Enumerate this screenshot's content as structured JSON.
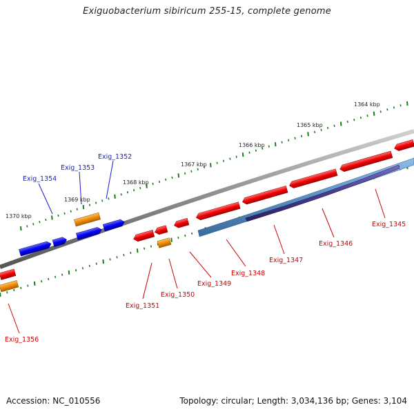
{
  "title": "Exiguobacterium sibiricum 255-15, complete genome",
  "accession": "Accession: NC_010556",
  "topology": "Topology: circular; Length: 3,034,136 bp; Genes: 3,104",
  "colors": {
    "backbone": "#8a8a8a",
    "tick": "#1b7a1b",
    "cds_forward": "#0000ee",
    "cds_reverse": "#ee0000",
    "rna_forward": "#ee8a00",
    "rna_reverse": "#ee8a00",
    "feature_blue": "#5a8fc4",
    "feature_purple": "#4a3c8c",
    "label_forward": "#1a1acc",
    "label_reverse": "#cc0000",
    "kbp_label": "#222222"
  },
  "scale_labels": [
    "1364 kbp",
    "1365 kbp",
    "1366 kbp",
    "1367 kbp",
    "1368 kbp",
    "1369 kbp",
    "1370 kbp"
  ],
  "forward_labels": [
    "Exig_1352",
    "Exig_1353",
    "Exig_1354"
  ],
  "reverse_labels": [
    "Exig_1345",
    "Exig_1346",
    "Exig_1347",
    "Exig_1348",
    "Exig_1349",
    "Exig_1350",
    "Exig_1351",
    "Exig_1356"
  ]
}
